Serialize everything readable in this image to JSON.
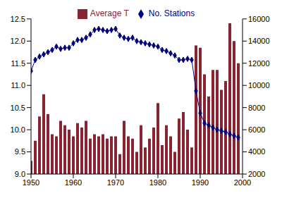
{
  "chart_data": {
    "type": "bar",
    "x": [
      1950,
      1951,
      1952,
      1953,
      1954,
      1955,
      1956,
      1957,
      1958,
      1959,
      1960,
      1961,
      1962,
      1963,
      1964,
      1965,
      1966,
      1967,
      1968,
      1969,
      1970,
      1971,
      1972,
      1973,
      1974,
      1975,
      1976,
      1977,
      1978,
      1979,
      1980,
      1981,
      1982,
      1983,
      1984,
      1985,
      1986,
      1987,
      1988,
      1989,
      1990,
      1991,
      1992,
      1993,
      1994,
      1995,
      1996,
      1997,
      1998,
      1999
    ],
    "series": [
      {
        "name": "Average T",
        "type": "bar",
        "color": "#8b2232",
        "values": [
          9.3,
          9.75,
          10.3,
          10.8,
          10.35,
          9.9,
          9.85,
          10.2,
          10.1,
          10.0,
          9.85,
          10.15,
          10.05,
          10.2,
          9.8,
          9.9,
          9.85,
          9.9,
          9.8,
          9.85,
          9.85,
          9.45,
          10.2,
          9.85,
          9.8,
          9.5,
          10.1,
          9.6,
          9.8,
          10.05,
          10.6,
          9.65,
          10.1,
          9.85,
          9.5,
          10.25,
          10.4,
          10.0,
          9.6,
          11.9,
          11.85,
          11.25,
          10.75,
          11.35,
          11.35,
          10.9,
          11.1,
          12.4,
          12.0,
          11.5
        ]
      },
      {
        "name": "No. Stations",
        "type": "line",
        "axis": "y2",
        "color": "#000080",
        "marker": "diamond",
        "values": [
          11300,
          12300,
          12600,
          12800,
          13000,
          13200,
          13500,
          13300,
          13400,
          13400,
          13800,
          14100,
          14100,
          14300,
          14600,
          15000,
          15100,
          15000,
          14900,
          15000,
          15100,
          14500,
          14300,
          14200,
          14300,
          14000,
          13900,
          13800,
          13700,
          13600,
          13500,
          13200,
          13100,
          12900,
          12700,
          12300,
          12300,
          12400,
          12300,
          9500,
          7500,
          6600,
          6400,
          6200,
          6000,
          5900,
          5800,
          5600,
          5450,
          5300
        ]
      }
    ],
    "xlim": [
      1950,
      2000
    ],
    "xticks": [
      1950,
      1960,
      1970,
      1980,
      1990,
      2000
    ],
    "ylim": [
      9,
      12.5
    ],
    "yticks": [
      {
        "value": 9,
        "label": "9.0"
      },
      9.5,
      {
        "value": 10,
        "label": "10.0"
      },
      10.5,
      {
        "value": 11,
        "label": "11.0"
      },
      11.5,
      {
        "value": 12,
        "label": "12.0"
      },
      12.5
    ],
    "y2lim": [
      2000,
      16000
    ],
    "y2ticks": [
      2000,
      4000,
      6000,
      8000,
      10000,
      12000,
      14000,
      16000
    ],
    "legend": "top"
  }
}
